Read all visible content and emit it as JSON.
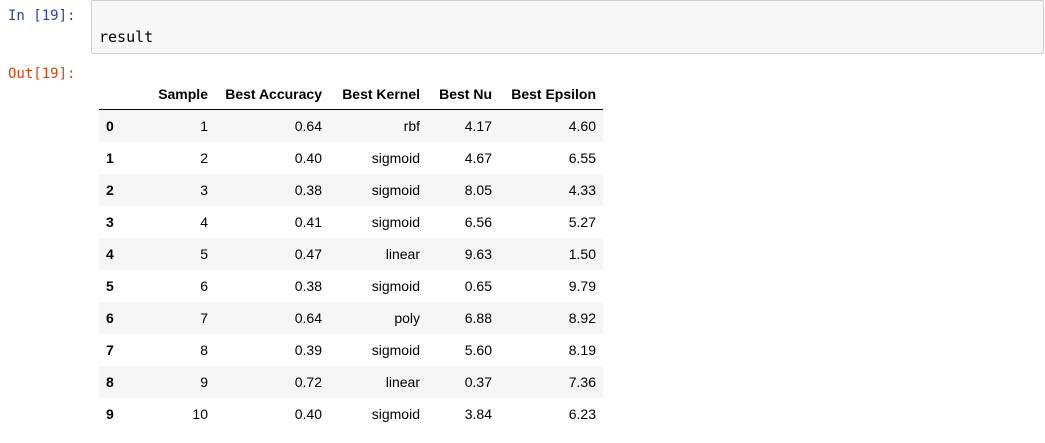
{
  "input_prompt": "In [19]:",
  "output_prompt": "Out[19]:",
  "code": "result",
  "table": {
    "columns": [
      "",
      "Sample",
      "Best Accuracy",
      "Best Kernel",
      "Best Nu",
      "Best Epsilon"
    ],
    "rows": [
      {
        "index": "0",
        "sample": "1",
        "accuracy": "0.64",
        "kernel": "rbf",
        "nu": "4.17",
        "epsilon": "4.60"
      },
      {
        "index": "1",
        "sample": "2",
        "accuracy": "0.40",
        "kernel": "sigmoid",
        "nu": "4.67",
        "epsilon": "6.55"
      },
      {
        "index": "2",
        "sample": "3",
        "accuracy": "0.38",
        "kernel": "sigmoid",
        "nu": "8.05",
        "epsilon": "4.33"
      },
      {
        "index": "3",
        "sample": "4",
        "accuracy": "0.41",
        "kernel": "sigmoid",
        "nu": "6.56",
        "epsilon": "5.27"
      },
      {
        "index": "4",
        "sample": "5",
        "accuracy": "0.47",
        "kernel": "linear",
        "nu": "9.63",
        "epsilon": "1.50"
      },
      {
        "index": "5",
        "sample": "6",
        "accuracy": "0.38",
        "kernel": "sigmoid",
        "nu": "0.65",
        "epsilon": "9.79"
      },
      {
        "index": "6",
        "sample": "7",
        "accuracy": "0.64",
        "kernel": "poly",
        "nu": "6.88",
        "epsilon": "8.92"
      },
      {
        "index": "7",
        "sample": "8",
        "accuracy": "0.39",
        "kernel": "sigmoid",
        "nu": "5.60",
        "epsilon": "8.19"
      },
      {
        "index": "8",
        "sample": "9",
        "accuracy": "0.72",
        "kernel": "linear",
        "nu": "0.37",
        "epsilon": "7.36"
      },
      {
        "index": "9",
        "sample": "10",
        "accuracy": "0.40",
        "kernel": "sigmoid",
        "nu": "3.84",
        "epsilon": "6.23"
      }
    ]
  }
}
